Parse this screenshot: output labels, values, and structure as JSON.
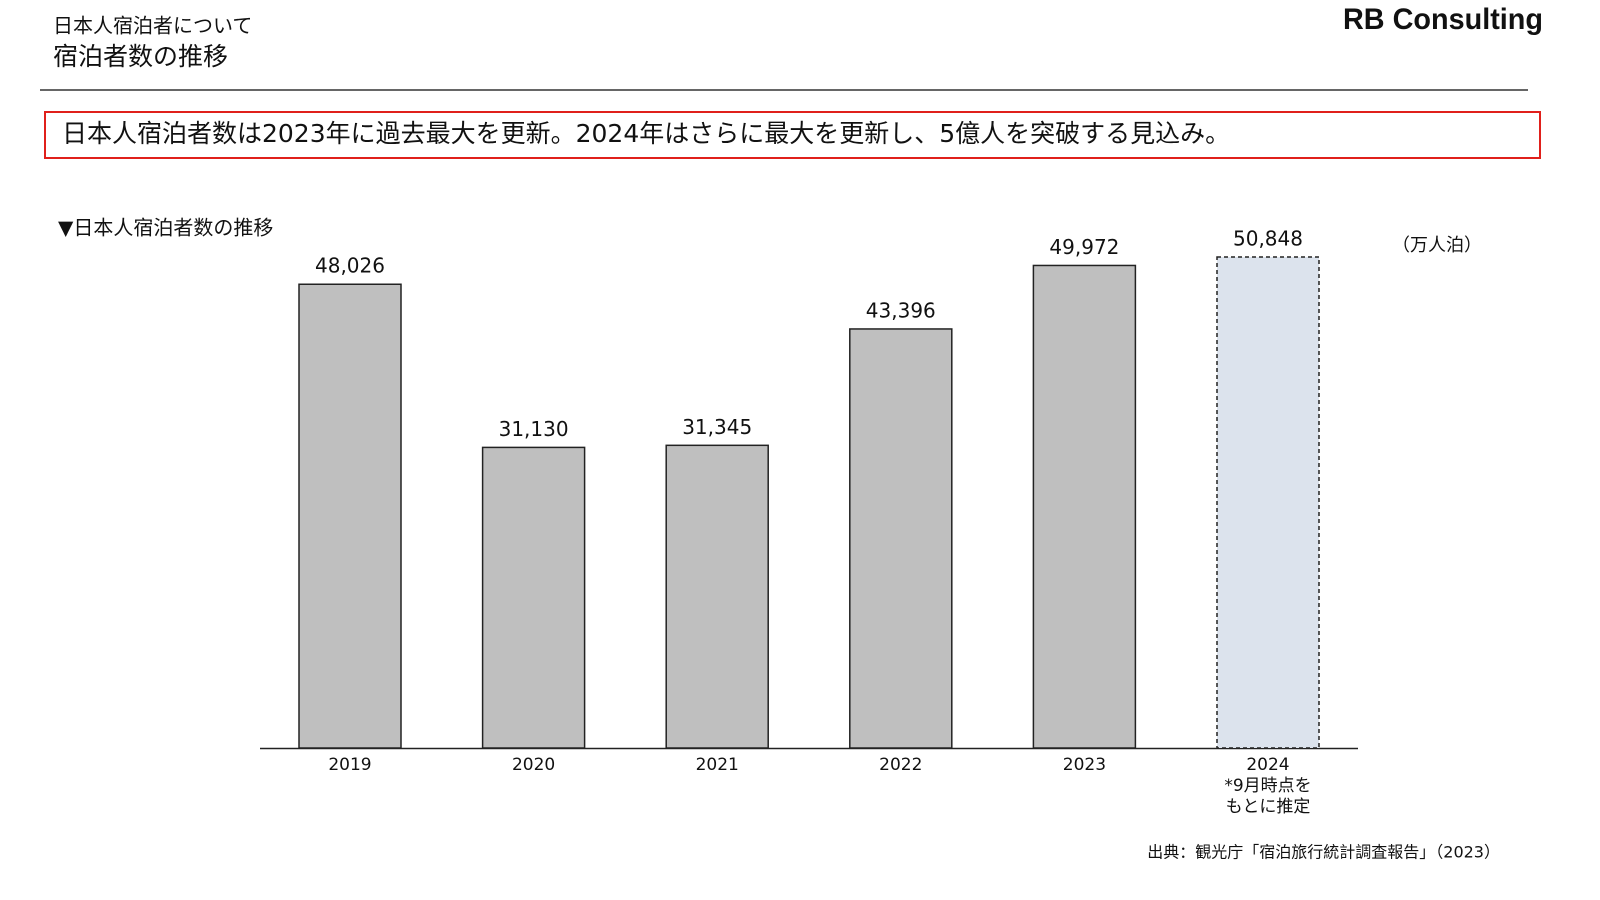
{
  "header": {
    "subtitle": "日本人宿泊者について",
    "title": "宿泊者数の推移",
    "brand": "RB Consulting"
  },
  "headline": "日本人宿泊者数は2023年に過去最大を更新。2024年はさらに最大を更新し、5億人を突破する見込み。",
  "chart_data": {
    "type": "bar",
    "title": "▼日本人宿泊者数の推移",
    "unit": "（万人泊）",
    "categories": [
      "2019",
      "2020",
      "2021",
      "2022",
      "2023",
      "2024"
    ],
    "values": [
      48026,
      31130,
      31345,
      43396,
      49972,
      50848
    ],
    "value_labels": [
      "48,026",
      "31,130",
      "31,345",
      "43,396",
      "49,972",
      "50,848"
    ],
    "colors": [
      "#bfbfbf",
      "#bfbfbf",
      "#bfbfbf",
      "#bfbfbf",
      "#bfbfbf",
      "#dce3ed"
    ],
    "dashed": [
      false,
      false,
      false,
      false,
      false,
      true
    ],
    "annotations": [
      "*9月時点を",
      "もとに推定"
    ]
  },
  "source": "出典：観光庁「宿泊旅行統計調査報告」（2023）"
}
